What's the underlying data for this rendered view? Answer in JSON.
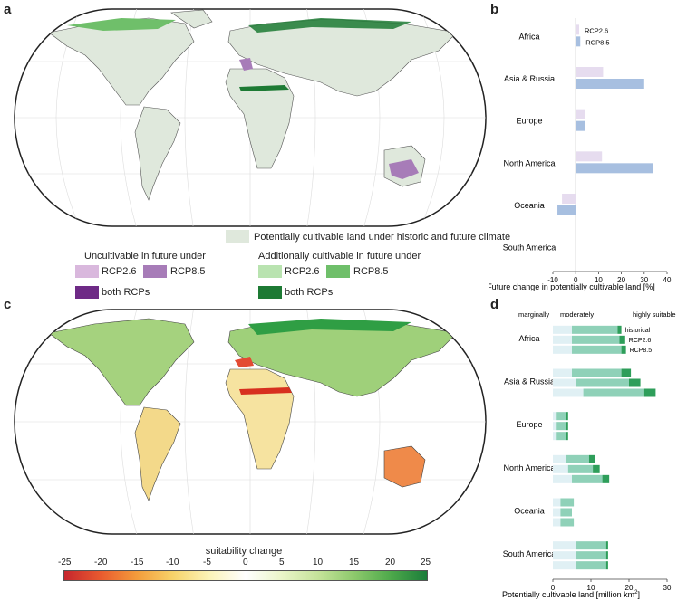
{
  "panels": {
    "a": "a",
    "b": "b",
    "c": "c",
    "d": "d"
  },
  "legend_a": {
    "potential_label": "Potentially cultivable land under historic and future climate",
    "uncultivable_title": "Uncultivable in future under",
    "additional_title": "Additionally cultivable in future under",
    "rcp26": "RCP2.6",
    "rcp85": "RCP8.5",
    "both": "both RCPs",
    "colors": {
      "potential": "#dfe8dc",
      "unc_rcp26": "#d9b8dd",
      "unc_rcp85": "#a77cb8",
      "unc_both": "#6e2a86",
      "add_rcp26": "#b9e3b0",
      "add_rcp85": "#6fbf6a",
      "add_both": "#1d7a34"
    }
  },
  "colorbar_c": {
    "label": "suitability change",
    "ticks": [
      "-25",
      "-20",
      "-15",
      "-10",
      "-5",
      "0",
      "5",
      "10",
      "15",
      "20",
      "25"
    ]
  },
  "chart_data": [
    {
      "type": "bar",
      "panel": "b",
      "orientation": "horizontal",
      "xlabel": "Future change in potentially cultivable land [%]",
      "xlim": [
        -10,
        40
      ],
      "xticks": [
        "-10",
        "0",
        "10",
        "20",
        "30",
        "40"
      ],
      "categories": [
        "Africa",
        "Asia & Russia",
        "Europe",
        "North America",
        "Oceania",
        "South America"
      ],
      "series": [
        {
          "name": "RCP2.6",
          "color": "#e6dcef",
          "values": [
            1.5,
            12,
            4,
            11.5,
            -6,
            0
          ]
        },
        {
          "name": "RCP8.5",
          "color": "#a7bfe0",
          "values": [
            2,
            30,
            4,
            34,
            -8,
            0
          ]
        }
      ]
    },
    {
      "type": "bar",
      "panel": "d",
      "orientation": "horizontal",
      "stacked": true,
      "xlabel": "Potentially cultivable land [million km",
      "xlabel_sup": "2",
      "xlabel_end": "]",
      "xlim": [
        0,
        30
      ],
      "xticks": [
        "0",
        "10",
        "20",
        "30"
      ],
      "stack_labels": [
        "marginally",
        "moderately",
        "highly suitable"
      ],
      "scenario_labels": [
        "historical",
        "RCP2.6",
        "RCP8.5"
      ],
      "colors": {
        "marginally": "#e0f0f4",
        "moderately": "#8fd1b8",
        "highly suitable": "#2e9e5a"
      },
      "categories": [
        "Africa",
        "Asia & Russia",
        "Europe",
        "North America",
        "Oceania",
        "South America"
      ],
      "values": {
        "Africa": [
          [
            5,
            12,
            1
          ],
          [
            5,
            12.5,
            1.5
          ],
          [
            5,
            13,
            1.2
          ]
        ],
        "Asia & Russia": [
          [
            5,
            13,
            2.5
          ],
          [
            6,
            14,
            3
          ],
          [
            8,
            16,
            3
          ]
        ],
        "Europe": [
          [
            1,
            2.5,
            0.5
          ],
          [
            1,
            2.5,
            0.5
          ],
          [
            1,
            2.5,
            0.5
          ]
        ],
        "North America": [
          [
            3.5,
            6,
            1.5
          ],
          [
            4,
            6.5,
            1.8
          ],
          [
            5,
            8,
            1.8
          ]
        ],
        "Oceania": [
          [
            2,
            3.5,
            0
          ],
          [
            2,
            3,
            0
          ],
          [
            2,
            3.5,
            0
          ]
        ],
        "South America": [
          [
            6,
            8,
            0.5
          ],
          [
            6,
            8,
            0.5
          ],
          [
            6,
            8,
            0.5
          ]
        ]
      }
    }
  ]
}
